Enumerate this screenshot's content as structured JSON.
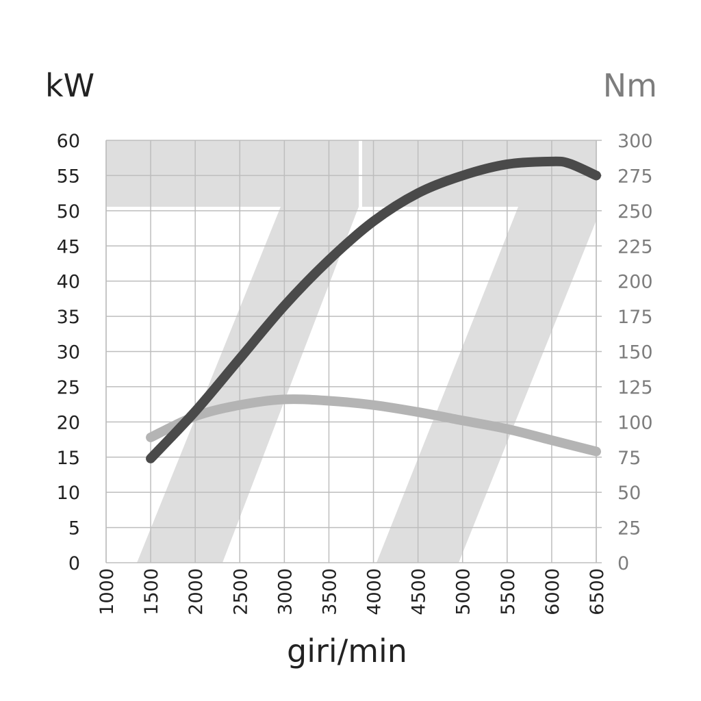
{
  "chart_data": {
    "type": "line",
    "xlabel": "giri/min",
    "ylabel_left": "kW",
    "ylabel_right": "Nm",
    "xlim": [
      1000,
      6500
    ],
    "xticks": [
      "1000",
      "1500",
      "2000",
      "2500",
      "3000",
      "3500",
      "4000",
      "4500",
      "5000",
      "5500",
      "6000",
      "6500"
    ],
    "ylim_left": [
      0,
      60
    ],
    "yticks_left": [
      "0",
      "5",
      "10",
      "15",
      "20",
      "25",
      "30",
      "35",
      "40",
      "45",
      "50",
      "55",
      "60"
    ],
    "ylim_right": [
      0,
      300
    ],
    "yticks_right": [
      "0",
      "25",
      "50",
      "75",
      "100",
      "125",
      "150",
      "175",
      "200",
      "225",
      "250",
      "275",
      "300"
    ],
    "grid": true,
    "series": [
      {
        "axis": "left",
        "color": "#4a4a4a",
        "x": [
          1500,
          2000,
          2500,
          3000,
          3500,
          4000,
          4500,
          5000,
          5500,
          6000,
          6200,
          6500
        ],
        "values": [
          14.8,
          21.5,
          29.0,
          36.5,
          43.0,
          48.5,
          52.5,
          55.0,
          56.6,
          57.0,
          56.7,
          55.0
        ]
      },
      {
        "axis": "right",
        "color": "#b4b4b4",
        "x": [
          1500,
          2000,
          2500,
          3000,
          3500,
          4000,
          4500,
          5000,
          5500,
          6000,
          6500
        ],
        "values": [
          89,
          104,
          112,
          116,
          115,
          112,
          107,
          101,
          95,
          87,
          79
        ]
      }
    ]
  }
}
